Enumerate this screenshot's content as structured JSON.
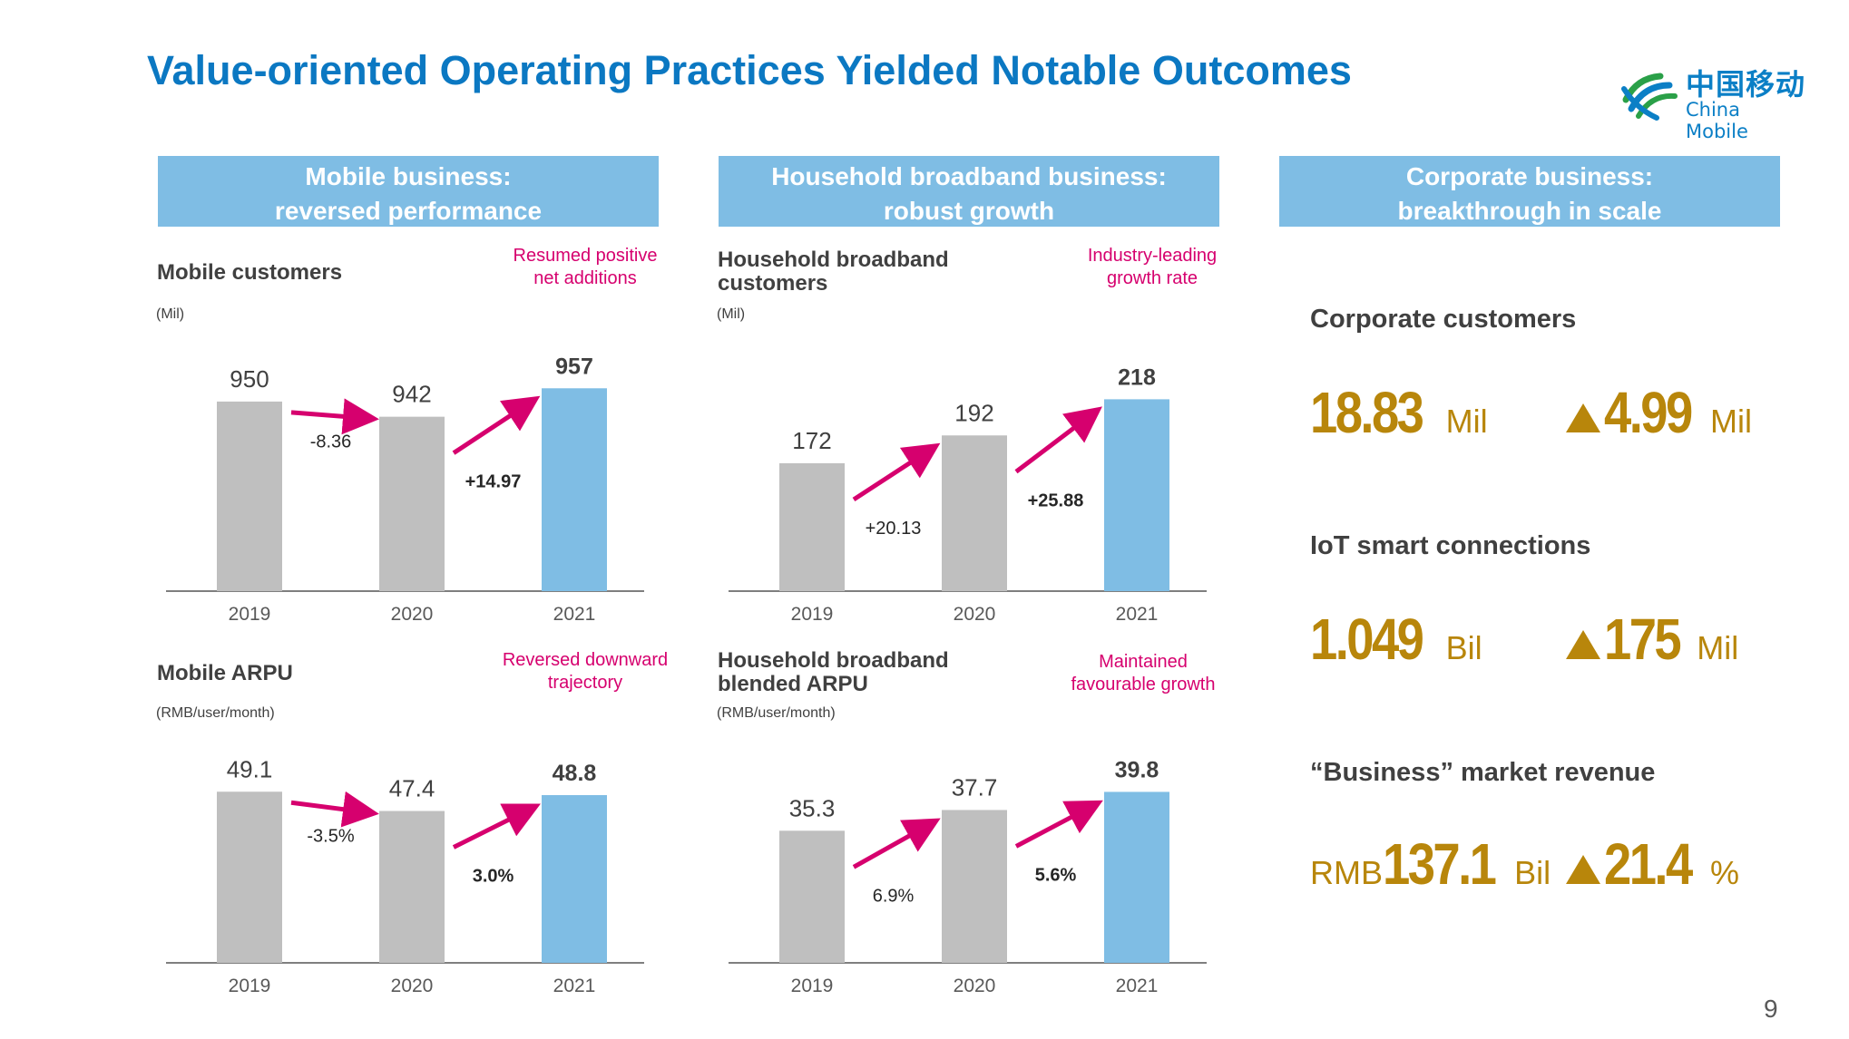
{
  "slide": {
    "title": "Value-oriented Operating Practices Yielded Notable Outcomes",
    "page_number": "9",
    "logo": {
      "cn": "中国移动",
      "en": "China Mobile"
    }
  },
  "columns": {
    "mobile": {
      "header_line1": "Mobile business:",
      "header_line2": "reversed performance"
    },
    "broadband": {
      "header_line1": "Household broadband business:",
      "header_line2": "robust growth"
    },
    "corporate": {
      "header_line1": "Corporate business:",
      "header_line2": "breakthrough in scale"
    }
  },
  "sections": {
    "mobile_customers": {
      "title": "Mobile customers",
      "unit": "(Mil)",
      "note_line1": "Resumed positive",
      "note_line2": "net additions"
    },
    "broadband_customers": {
      "title_line1": "Household broadband",
      "title_line2": "customers",
      "unit": "(Mil)",
      "note_line1": "Industry-leading",
      "note_line2": "growth rate"
    },
    "mobile_arpu": {
      "title": "Mobile ARPU",
      "unit": "(RMB/user/month)",
      "note_line1": "Reversed downward",
      "note_line2": "trajectory"
    },
    "broadband_arpu": {
      "title_line1": "Household broadband",
      "title_line2": "blended ARPU",
      "unit": "(RMB/user/month)",
      "note_line1": "Maintained",
      "note_line2": "favourable growth"
    }
  },
  "corporate": {
    "customers": {
      "label": "Corporate customers",
      "value": "18.83",
      "unit": "Mil",
      "delta": "4.99",
      "delta_unit": "Mil"
    },
    "iot": {
      "label": "IoT smart connections",
      "value": "1.049",
      "unit": "Bil",
      "delta": "175",
      "delta_unit": "Mil"
    },
    "business_revenue": {
      "label": "“Business” market revenue",
      "prefix": "RMB",
      "value": "137.1",
      "unit": "Bil",
      "delta": "21.4",
      "delta_unit": "%"
    }
  },
  "colors": {
    "highlight_bar": "#7fbde4",
    "base_bar": "#bfbfbf",
    "arrow": "#d6006e",
    "accent_gold": "#b8860b",
    "title_blue": "#0b78c2"
  },
  "chart_data": [
    {
      "type": "bar",
      "id": "mobile_customers",
      "categories": [
        "2019",
        "2020",
        "2021"
      ],
      "values": [
        950,
        942,
        957
      ],
      "value_labels": [
        "950",
        "942",
        "957"
      ],
      "changes": [
        "-8.36",
        "+14.97"
      ],
      "ylim": [
        850,
        960
      ]
    },
    {
      "type": "bar",
      "id": "broadband_customers",
      "categories": [
        "2019",
        "2020",
        "2021"
      ],
      "values": [
        172,
        192,
        218
      ],
      "value_labels": [
        "172",
        "192",
        "218"
      ],
      "changes": [
        "+20.13",
        "+25.88"
      ],
      "ylim": [
        80,
        230
      ]
    },
    {
      "type": "bar",
      "id": "mobile_arpu",
      "categories": [
        "2019",
        "2020",
        "2021"
      ],
      "values": [
        49.1,
        47.4,
        48.8
      ],
      "value_labels": [
        "49.1",
        "47.4",
        "48.8"
      ],
      "changes": [
        "-3.5%",
        "3.0%"
      ],
      "ylim": [
        34,
        50
      ]
    },
    {
      "type": "bar",
      "id": "broadband_arpu",
      "categories": [
        "2019",
        "2020",
        "2021"
      ],
      "values": [
        35.3,
        37.7,
        39.8
      ],
      "value_labels": [
        "35.3",
        "37.7",
        "39.8"
      ],
      "changes": [
        "6.9%",
        "5.6%"
      ],
      "ylim": [
        20,
        41
      ]
    }
  ]
}
